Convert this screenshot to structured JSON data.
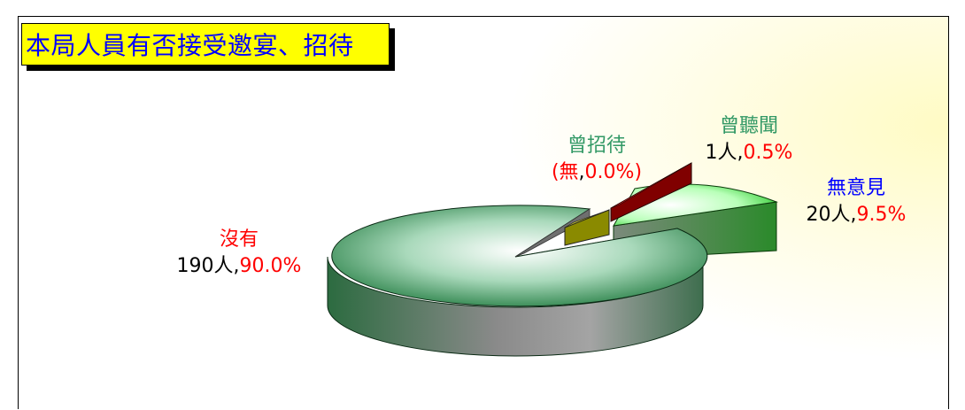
{
  "title": "本局人員有否接受邀宴、招待",
  "chart_data": {
    "type": "pie",
    "style": "3d-exploded",
    "title": "本局人員有否接受邀宴、招待",
    "slices": [
      {
        "name": "沒有",
        "count_text": "190人",
        "sep": ",",
        "pct_text": "90.0%",
        "count": 190,
        "percent": 90.0,
        "color": "#3e8f5a",
        "name_color": "#ff0000",
        "exploded": false
      },
      {
        "name": "曾招待",
        "count_text": "(無",
        "sep": ",",
        "pct_text": "0.0%)",
        "count": 0,
        "percent": 0.0,
        "color": "#8a8a00",
        "name_color": "#339966",
        "exploded": true
      },
      {
        "name": "曾聽聞",
        "count_text": "1人",
        "sep": ",",
        "pct_text": "0.5%",
        "count": 1,
        "percent": 0.5,
        "color": "#800000",
        "name_color": "#339966",
        "exploded": true
      },
      {
        "name": "無意見",
        "count_text": "20人",
        "sep": ",",
        "pct_text": "9.5%",
        "count": 20,
        "percent": 9.5,
        "color": "#33cc33",
        "name_color": "#0000ff",
        "exploded": true
      }
    ],
    "legend": "none",
    "label_colors": {
      "count": "#000000",
      "percent": "#ff0000"
    }
  }
}
